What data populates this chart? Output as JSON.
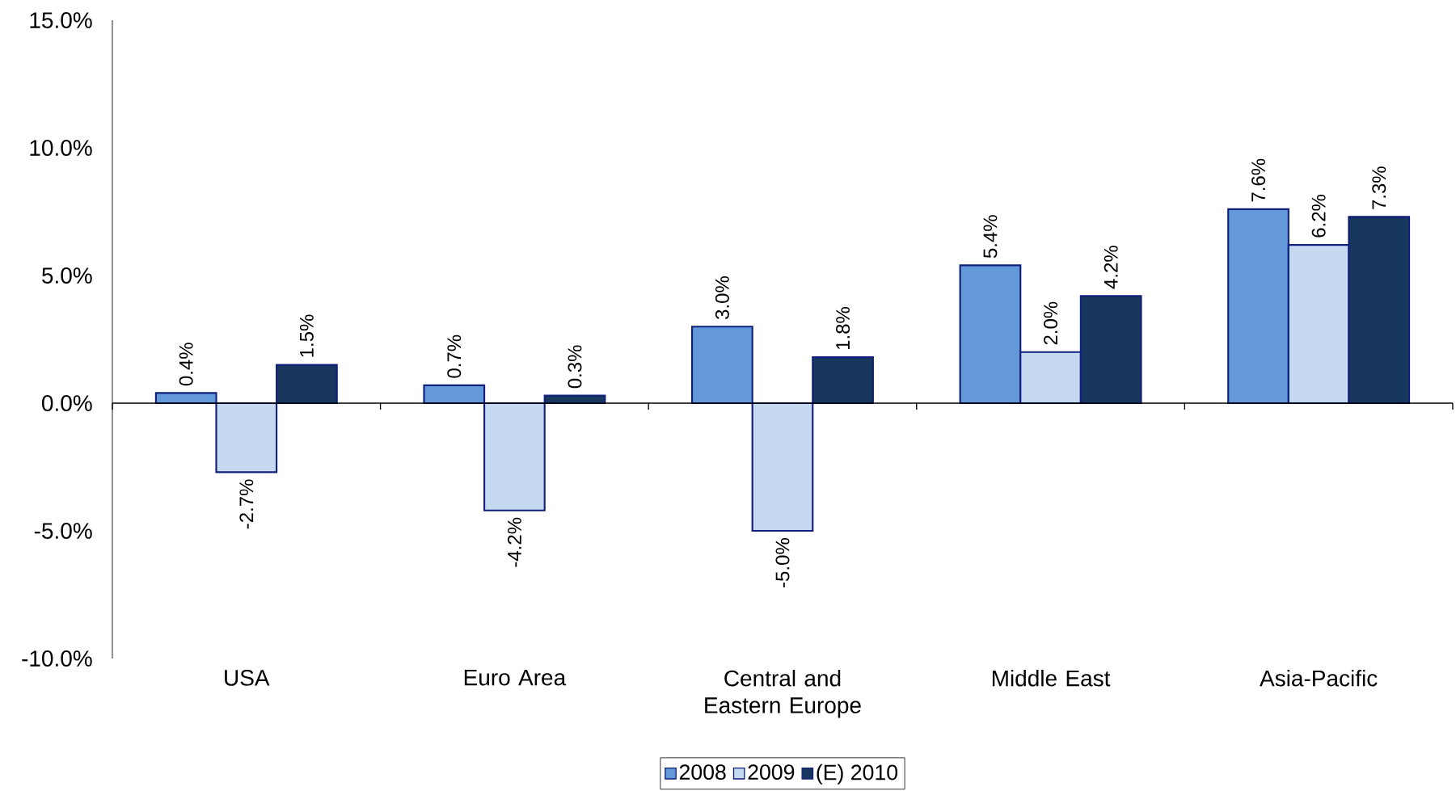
{
  "chart_data": {
    "type": "bar",
    "categories": [
      "USA",
      "Euro Area",
      "Central and Eastern Europe",
      "Middle East",
      "Asia-Pacific"
    ],
    "series": [
      {
        "name": "2008",
        "color": "#6399d8",
        "values": [
          0.4,
          0.7,
          3.0,
          5.4,
          7.6
        ],
        "value_labels": [
          "0.4%",
          "0.7%",
          "3.0%",
          "5.4%",
          "7.6%"
        ]
      },
      {
        "name": "2009",
        "color": "#c5d9f1",
        "values": [
          -2.7,
          -4.2,
          -5.0,
          2.0,
          6.2
        ],
        "value_labels": [
          "-2.7%",
          "-4.2%",
          "-5.0%",
          "2.0%",
          "6.2%"
        ]
      },
      {
        "name": "(E) 2010",
        "color": "#17375e",
        "values": [
          1.5,
          0.3,
          1.8,
          4.2,
          7.3
        ],
        "value_labels": [
          "1.5%",
          "0.3%",
          "1.8%",
          "4.2%",
          "7.3%"
        ]
      }
    ],
    "ylim": [
      -10,
      15
    ],
    "yticks": [
      {
        "value": -10,
        "label": "-10.0%"
      },
      {
        "value": -5,
        "label": "-5.0%"
      },
      {
        "value": 0,
        "label": "0.0%"
      },
      {
        "value": 5,
        "label": "5.0%"
      },
      {
        "value": 10,
        "label": "10.0%"
      },
      {
        "value": 15,
        "label": "15.0%"
      }
    ],
    "legend": "bottom"
  }
}
